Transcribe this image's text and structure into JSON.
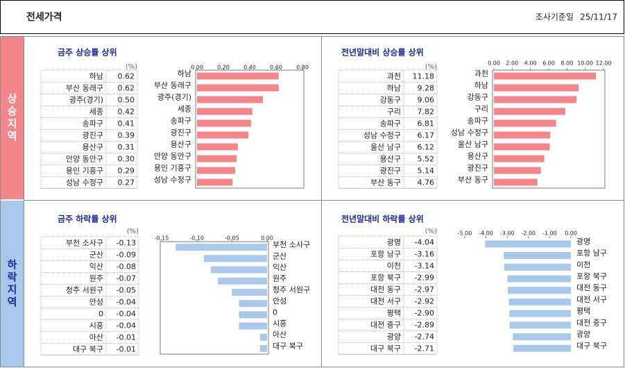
{
  "header": {
    "title": "전세가격",
    "date_label": "조사기준일",
    "date": "25/11/17"
  },
  "sections": [
    "상승지역",
    "하락지역"
  ],
  "chart_data": [
    {
      "type": "bar",
      "title": "금주 상승률 상위",
      "unit": "(%)",
      "color": "#f4868a",
      "categories": [
        "하남",
        "부산 동래구",
        "광주(경기)",
        "세종",
        "송파구",
        "광진구",
        "용산구",
        "안양 동안구",
        "용인 기흥구",
        "성남 수정구"
      ],
      "values": [
        0.62,
        0.62,
        0.5,
        0.42,
        0.41,
        0.39,
        0.31,
        0.3,
        0.29,
        0.27
      ],
      "value_labels": [
        "0.62",
        "0.62",
        "0.50",
        "0.42",
        "0.41",
        "0.39",
        "0.31",
        "0.30",
        "0.29",
        "0.27"
      ],
      "xlim": [
        0,
        0.8
      ],
      "xticks": [
        {
          "value": 0,
          "label": "0.00"
        },
        {
          "value": 0.2,
          "label": "0.20"
        },
        {
          "value": 0.4,
          "label": "0.40"
        },
        {
          "value": 0.6,
          "label": "0.60"
        },
        {
          "value": 0.8,
          "label": "0.80"
        }
      ]
    },
    {
      "type": "bar",
      "title": "전년말대비 상승률 상위",
      "unit": "(%)",
      "color": "#f4868a",
      "categories": [
        "과천",
        "하남",
        "강동구",
        "구리",
        "송파구",
        "성남 수정구",
        "울산 남구",
        "용산구",
        "광진구",
        "부산 동구"
      ],
      "values": [
        11.18,
        9.28,
        9.06,
        7.82,
        6.81,
        6.17,
        6.12,
        5.52,
        5.14,
        4.76
      ],
      "value_labels": [
        "11.18",
        "9.28",
        "9.06",
        "7.82",
        "6.81",
        "6.17",
        "6.12",
        "5.52",
        "5.14",
        "4.76"
      ],
      "xlim": [
        0,
        12
      ],
      "xticks": [
        {
          "value": 0,
          "label": "0.00"
        },
        {
          "value": 2,
          "label": "2.00"
        },
        {
          "value": 4,
          "label": "4.00"
        },
        {
          "value": 6,
          "label": "6.00"
        },
        {
          "value": 8,
          "label": "8.00"
        },
        {
          "value": 10,
          "label": "10.00"
        },
        {
          "value": 12,
          "label": "12.00"
        }
      ]
    },
    {
      "type": "bar",
      "title": "금주 하락률 상위",
      "unit": "(%)",
      "color": "#a8c8ec",
      "categories": [
        "부천 소사구",
        "군산",
        "익산",
        "원주",
        "청주 서원구",
        "안성",
        "0",
        "시흥",
        "아산",
        "대구 북구"
      ],
      "values": [
        -0.13,
        -0.09,
        -0.08,
        -0.07,
        -0.05,
        -0.04,
        -0.04,
        -0.04,
        -0.01,
        -0.01
      ],
      "value_labels": [
        "-0.13",
        "-0.09",
        "-0.08",
        "-0.07",
        "-0.05",
        "-0.04",
        "-0.04",
        "-0.04",
        "-0.01",
        "-0.01"
      ],
      "xlim": [
        -0.15,
        0
      ],
      "xticks": [
        {
          "value": -0.15,
          "label": "-0.15"
        },
        {
          "value": -0.1,
          "label": "-0.10"
        },
        {
          "value": -0.05,
          "label": "-0.05"
        },
        {
          "value": 0,
          "label": "0.00"
        }
      ]
    },
    {
      "type": "bar",
      "title": "전년말대비 하락률 상위",
      "unit": "(%)",
      "color": "#a8c8ec",
      "categories": [
        "광명",
        "포항 남구",
        "이천",
        "포항 북구",
        "대전 동구",
        "대전 서구",
        "평택",
        "대전 중구",
        "광양",
        "대구 북구"
      ],
      "values": [
        -4.04,
        -3.16,
        -3.14,
        -2.99,
        -2.97,
        -2.92,
        -2.9,
        -2.89,
        -2.74,
        -2.71
      ],
      "value_labels": [
        "-4.04",
        "-3.16",
        "-3.14",
        "-2.99",
        "-2.97",
        "-2.92",
        "-2.90",
        "-2.89",
        "-2.74",
        "-2.71"
      ],
      "xlim": [
        -5,
        0
      ],
      "xticks": [
        {
          "value": -5,
          "label": "-5.00"
        },
        {
          "value": -4,
          "label": "-4.00"
        },
        {
          "value": -3,
          "label": "-3.00"
        },
        {
          "value": -2,
          "label": "-2.00"
        },
        {
          "value": -1,
          "label": "-1.00"
        },
        {
          "value": 0,
          "label": "0.00"
        }
      ]
    }
  ]
}
